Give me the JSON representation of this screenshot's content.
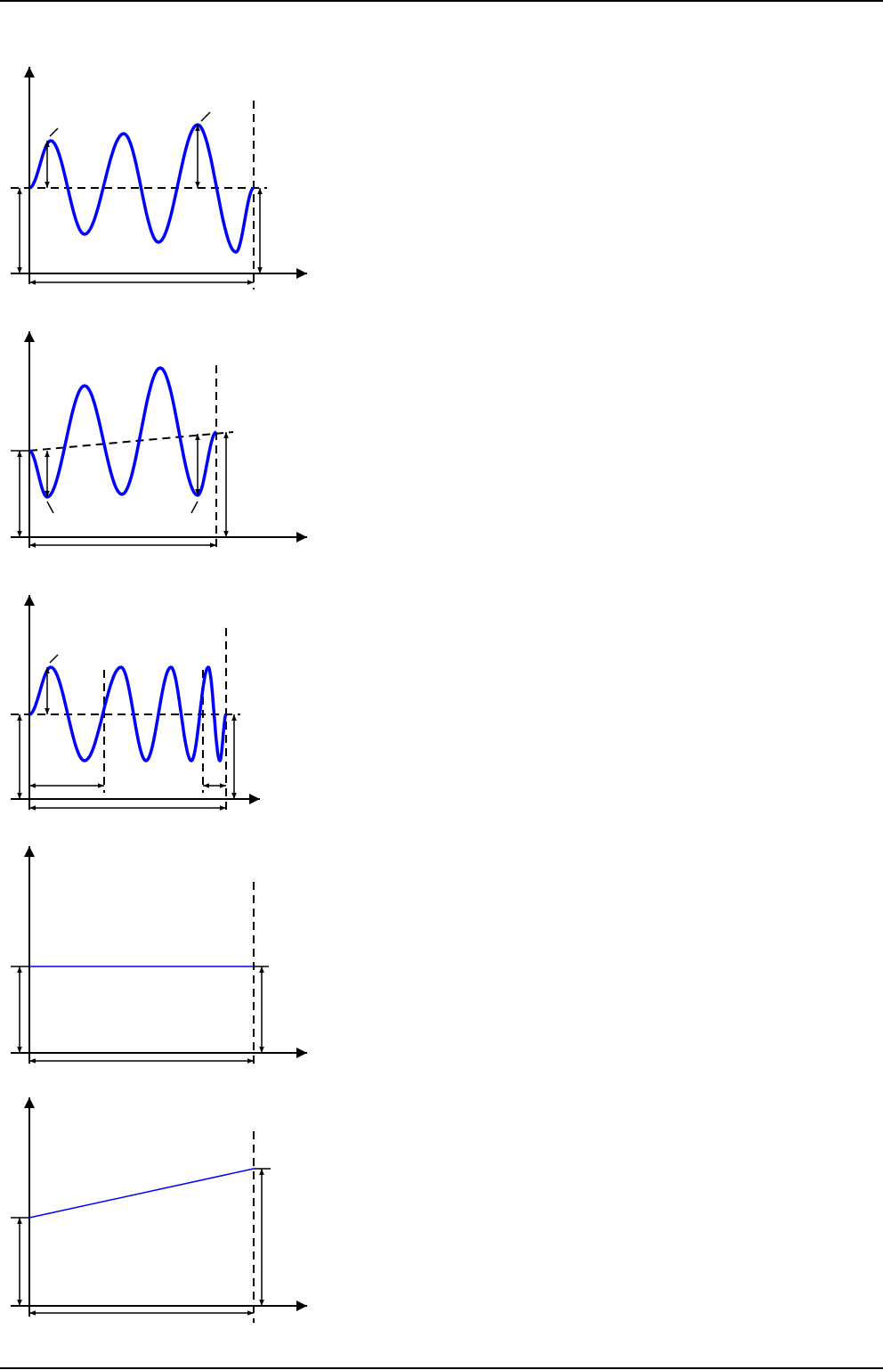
{
  "colors": {
    "signal": "#0000ff",
    "annotation": "#000000"
  },
  "panels": [
    {
      "id": "oscillation-constant-baseline"
    },
    {
      "id": "oscillation-sloped-baseline"
    },
    {
      "id": "oscillation-varying-period"
    },
    {
      "id": "constant-level"
    },
    {
      "id": "linear-ramp"
    }
  ]
}
